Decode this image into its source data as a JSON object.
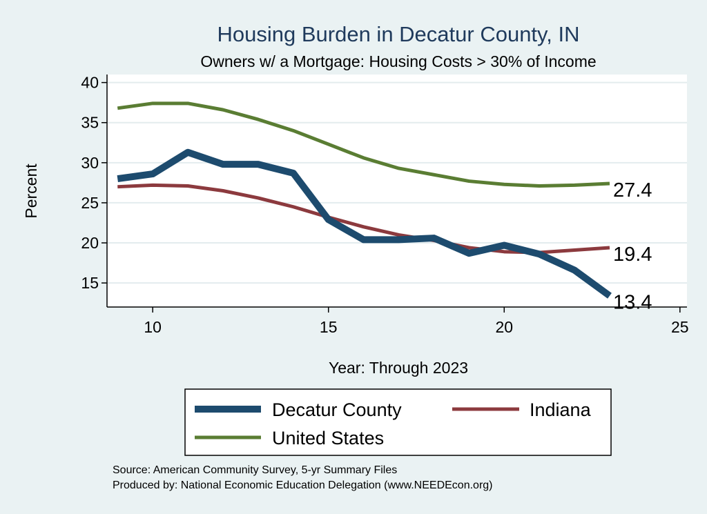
{
  "chart_data": {
    "type": "line",
    "title": "Housing Burden in Decatur County, IN",
    "subtitle": "Owners w/ a Mortgage: Housing Costs > 30% of Income",
    "xlabel": "Year: Through 2023",
    "ylabel": "Percent",
    "xlim": [
      8.7,
      25.2
    ],
    "ylim": [
      12,
      41
    ],
    "xticks": [
      10,
      15,
      20,
      25
    ],
    "yticks": [
      15,
      20,
      25,
      30,
      35,
      40
    ],
    "grid": true,
    "x": [
      9,
      10,
      11,
      12,
      13,
      14,
      15,
      16,
      17,
      18,
      19,
      20,
      21,
      22,
      23
    ],
    "series": [
      {
        "name": "United States",
        "color": "#5a7d33",
        "width": 5,
        "values": [
          36.8,
          37.4,
          37.4,
          36.6,
          35.4,
          34.0,
          32.3,
          30.6,
          29.3,
          28.5,
          27.7,
          27.3,
          27.1,
          27.2,
          27.4
        ],
        "end_label": "27.4"
      },
      {
        "name": "Indiana",
        "color": "#8c3a3e",
        "width": 5,
        "values": [
          27.0,
          27.2,
          27.1,
          26.5,
          25.6,
          24.5,
          23.2,
          22.0,
          21.0,
          20.3,
          19.4,
          18.9,
          18.8,
          19.1,
          19.4
        ],
        "end_label": "19.4"
      },
      {
        "name": "Decatur County",
        "color": "#1d4b6e",
        "width": 10,
        "values": [
          28.0,
          28.6,
          31.3,
          29.8,
          29.8,
          28.7,
          22.9,
          20.4,
          20.4,
          20.6,
          18.7,
          19.7,
          18.6,
          16.6,
          13.4
        ],
        "end_label": "13.4"
      }
    ],
    "legend": {
      "placement": "bottom",
      "entries": [
        "Decatur County",
        "Indiana",
        "United States"
      ]
    }
  },
  "source": {
    "line1": "Source: American Community Survey, 5-yr Summary Files",
    "line2": "Produced by: National Economic Education Delegation (www.NEEDEcon.org)"
  }
}
